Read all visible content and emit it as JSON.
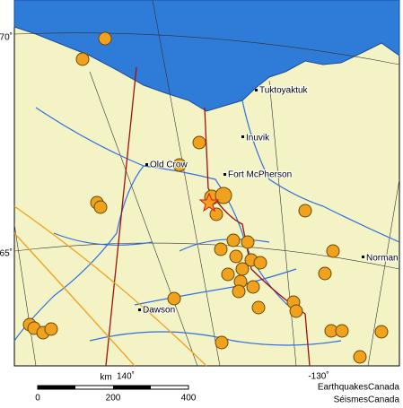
{
  "places": {
    "tuktoyaktuk": "Tuktoyaktuk",
    "inuvik": "Inuvik",
    "old_crow": "Old Crow",
    "fort_mcpherson": "Fort McPherson",
    "norman": "Norman",
    "dawson": "Dawson"
  },
  "graticule": {
    "lat_70": "70˚",
    "lat_65": "65˚",
    "lon_140": "140˚",
    "lon_130": "-130˚"
  },
  "scale": {
    "unit": "km",
    "ticks": [
      "0",
      "200",
      "400"
    ]
  },
  "credits": {
    "english": "EarthquakesCanada",
    "french": "SéismesCanada"
  }
}
